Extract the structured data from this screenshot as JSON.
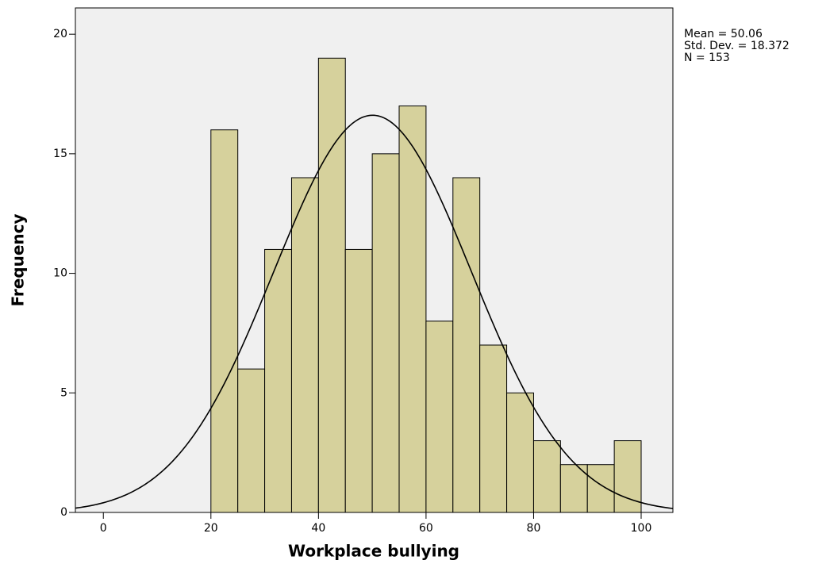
{
  "chart_data": {
    "type": "histogram",
    "x_label": "Workplace bullying",
    "y_label": "Frequency",
    "bins": [
      20,
      25,
      30,
      35,
      40,
      45,
      50,
      55,
      60,
      65,
      70,
      75,
      80,
      85,
      90,
      95,
      100
    ],
    "values": [
      16,
      6,
      11,
      14,
      19,
      11,
      15,
      17,
      8,
      14,
      7,
      5,
      3,
      2,
      2,
      3
    ],
    "color": "#d6d19c",
    "mean": {
      "value": 50.06,
      "label": "Mean = 50.06"
    },
    "std_dev": {
      "value": 18.372,
      "label": "Std. Dev. = 18.372"
    },
    "n": {
      "value": 153,
      "label": "N = 153"
    },
    "xlim": [
      -5.2,
      105.9
    ],
    "ylim": [
      0,
      21.1
    ],
    "xticks": [
      0,
      20,
      40,
      60,
      80,
      100
    ],
    "yticks": [
      0,
      5,
      10,
      15,
      20
    ]
  }
}
